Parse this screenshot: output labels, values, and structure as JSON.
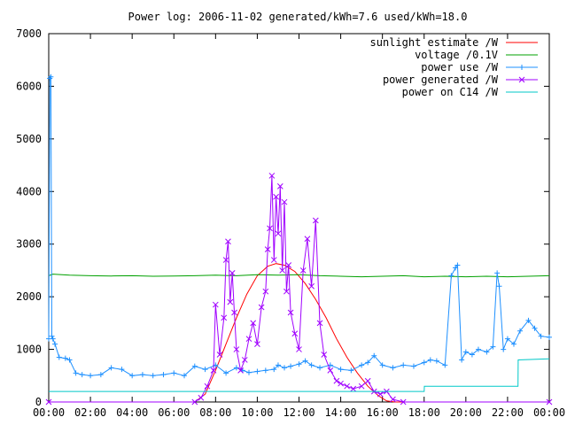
{
  "chart_data": {
    "type": "line",
    "title": "Power log: 2006-11-02 generated/kWh=7.6 used/kWh=18.0",
    "xlabel": "",
    "ylabel": "",
    "xlim": [
      0,
      24
    ],
    "ylim": [
      0,
      7000
    ],
    "y_ticks": [
      0,
      1000,
      2000,
      3000,
      4000,
      5000,
      6000,
      7000
    ],
    "x_ticks": [
      "00:00",
      "02:00",
      "04:00",
      "06:00",
      "08:00",
      "10:00",
      "12:00",
      "14:00",
      "16:00",
      "18:00",
      "20:00",
      "22:00",
      "00:00"
    ],
    "grid": false,
    "legend_position": "top-right",
    "series": [
      {
        "name": "sunlight estimate /W",
        "color": "#ff0000",
        "marker": "none",
        "x": [
          0,
          7.0,
          7.5,
          8.0,
          8.5,
          9.0,
          9.5,
          10.0,
          10.5,
          10.9,
          11.3,
          11.8,
          12.3,
          12.8,
          13.3,
          13.8,
          14.3,
          14.8,
          15.3,
          15.8,
          16.2,
          16.6,
          24
        ],
        "y": [
          0,
          0,
          150,
          600,
          1100,
          1600,
          2050,
          2400,
          2580,
          2630,
          2600,
          2480,
          2250,
          1950,
          1600,
          1200,
          850,
          550,
          300,
          120,
          20,
          0,
          0
        ]
      },
      {
        "name": "voltage /0.1V",
        "color": "#00a000",
        "marker": "none",
        "x": [
          0,
          0.2,
          1,
          2,
          3,
          4,
          5,
          6,
          7,
          8,
          9,
          10,
          11,
          12,
          13,
          14,
          15,
          16,
          17,
          18,
          19,
          20,
          21,
          22,
          23,
          24
        ],
        "y": [
          2400,
          2430,
          2410,
          2400,
          2395,
          2400,
          2390,
          2395,
          2400,
          2410,
          2400,
          2420,
          2410,
          2420,
          2400,
          2390,
          2380,
          2390,
          2400,
          2380,
          2390,
          2380,
          2390,
          2380,
          2390,
          2400
        ]
      },
      {
        "name": "power use /W",
        "color": "#1e90ff",
        "marker": "plus",
        "x": [
          0,
          0.05,
          0.1,
          0.15,
          0.2,
          0.3,
          0.5,
          0.8,
          1.0,
          1.3,
          1.6,
          2.0,
          2.5,
          3.0,
          3.5,
          4.0,
          4.5,
          5.0,
          5.5,
          6.0,
          6.5,
          7.0,
          7.5,
          8.0,
          8.5,
          9.0,
          9.3,
          9.6,
          10.0,
          10.4,
          10.8,
          11.0,
          11.3,
          11.6,
          12.0,
          12.3,
          12.6,
          13.0,
          13.5,
          14.0,
          14.5,
          15.0,
          15.3,
          15.6,
          16.0,
          16.5,
          17.0,
          17.5,
          18.0,
          18.3,
          18.6,
          19.0,
          19.3,
          19.5,
          19.6,
          19.8,
          20.0,
          20.3,
          20.6,
          21.0,
          21.3,
          21.5,
          21.6,
          21.8,
          22.0,
          22.3,
          22.6,
          23.0,
          23.3,
          23.6,
          24.0
        ],
        "y": [
          1200,
          6150,
          6180,
          1250,
          1200,
          1100,
          850,
          830,
          800,
          550,
          520,
          500,
          520,
          650,
          620,
          500,
          520,
          500,
          520,
          550,
          500,
          680,
          620,
          700,
          550,
          650,
          600,
          560,
          580,
          600,
          620,
          700,
          650,
          680,
          720,
          780,
          700,
          650,
          700,
          620,
          600,
          700,
          750,
          880,
          700,
          650,
          700,
          680,
          750,
          800,
          780,
          700,
          2400,
          2550,
          2600,
          800,
          950,
          900,
          1000,
          950,
          1050,
          2450,
          2200,
          1000,
          1200,
          1100,
          1350,
          1550,
          1400,
          1250,
          1230
        ]
      },
      {
        "name": "power generated /W",
        "color": "#a000ff",
        "marker": "cross",
        "x": [
          0,
          7.0,
          7.3,
          7.6,
          7.9,
          8.0,
          8.2,
          8.4,
          8.5,
          8.6,
          8.7,
          8.8,
          8.9,
          9.0,
          9.2,
          9.4,
          9.6,
          9.8,
          10.0,
          10.2,
          10.4,
          10.5,
          10.6,
          10.7,
          10.8,
          10.9,
          11.0,
          11.1,
          11.2,
          11.3,
          11.4,
          11.5,
          11.6,
          11.8,
          12.0,
          12.2,
          12.4,
          12.6,
          12.8,
          13.0,
          13.2,
          13.5,
          13.8,
          14.0,
          14.3,
          14.6,
          15.0,
          15.3,
          15.6,
          15.9,
          16.2,
          16.5,
          17.0,
          24
        ],
        "y": [
          0,
          0,
          80,
          300,
          600,
          1850,
          900,
          1600,
          2700,
          3050,
          1900,
          2450,
          1700,
          1000,
          600,
          800,
          1200,
          1500,
          1100,
          1800,
          2100,
          2900,
          3300,
          4300,
          2700,
          3900,
          3200,
          4100,
          2500,
          3800,
          2100,
          2600,
          1700,
          1300,
          1000,
          2500,
          3100,
          2200,
          3450,
          1500,
          900,
          600,
          400,
          350,
          300,
          250,
          300,
          400,
          200,
          150,
          200,
          50,
          0,
          0
        ]
      },
      {
        "name": "power on C14 /W",
        "color": "#00c8c8",
        "marker": "none",
        "x": [
          0,
          18.0,
          18.01,
          22.5,
          22.51,
          24
        ],
        "y": [
          200,
          200,
          300,
          300,
          800,
          820
        ]
      }
    ]
  }
}
